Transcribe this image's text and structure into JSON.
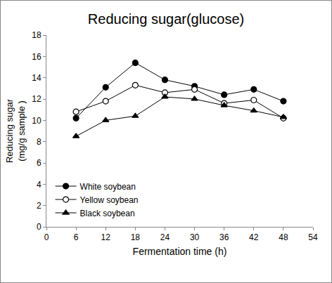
{
  "chart_data": {
    "type": "line",
    "title": "Reducing sugar(glucose)",
    "x_label": "Fermentation time (h)",
    "y_label": "Reducing sugar\n(mg/g sample )",
    "x": [
      6,
      12,
      18,
      24,
      30,
      36,
      42,
      48
    ],
    "series": [
      {
        "name": "White soybean",
        "color": "#000000",
        "marker": "circle",
        "values": [
          10.2,
          13.1,
          15.4,
          13.8,
          13.2,
          12.4,
          12.9,
          11.8
        ]
      },
      {
        "name": "Yellow soybean",
        "color": "#000000",
        "marker": "circle-open",
        "values": [
          10.8,
          11.8,
          13.3,
          12.6,
          12.9,
          11.6,
          11.9,
          10.2
        ]
      },
      {
        "name": "Black soybean",
        "color": "#000000",
        "marker": "triangle",
        "values": [
          8.5,
          10.0,
          10.4,
          12.2,
          12.0,
          11.4,
          10.9,
          10.3
        ]
      }
    ],
    "xlim": [
      0,
      54
    ],
    "xticks": [
      0,
      6,
      12,
      18,
      24,
      30,
      36,
      42,
      48,
      54
    ],
    "ylim": [
      0,
      18
    ],
    "yticks": [
      0,
      2,
      4,
      6,
      8,
      10,
      12,
      14,
      16,
      18
    ],
    "grid": false,
    "legend": "lower left"
  }
}
